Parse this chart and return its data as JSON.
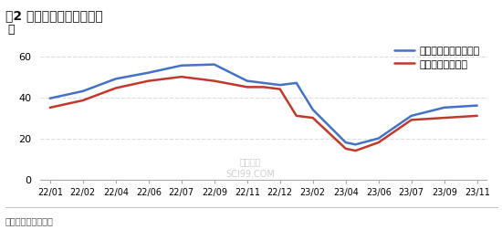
{
  "title": "图2 全国纺织企业成品库存",
  "ylabel": "天",
  "source_text": "数据来源：卓创资讯",
  "legend": [
    "纺厂纯棉坯布成品库存",
    "纺厂棉纱成品库存"
  ],
  "line1_color": "#4472C4",
  "line2_color": "#C0392B",
  "background_color": "#FFFFFF",
  "plot_bg_color": "#FFFFFF",
  "xlabels": [
    "22/01",
    "22/02",
    "22/04",
    "22/06",
    "22/07",
    "22/09",
    "22/11",
    "22/12",
    "23/02",
    "23/04",
    "23/06",
    "23/07",
    "23/09",
    "23/11"
  ],
  "ylim": [
    0,
    65
  ],
  "yticks": [
    0,
    20,
    40,
    60
  ],
  "line1_x": [
    0,
    1,
    2,
    3,
    4,
    5,
    6,
    6.5,
    7,
    7.5,
    8,
    9,
    9.3,
    10,
    11,
    12,
    13
  ],
  "line1_y": [
    39.5,
    43,
    49,
    52,
    55.5,
    56,
    48,
    47,
    46,
    47,
    34,
    18,
    17,
    20,
    31,
    35,
    36
  ],
  "line2_x": [
    0,
    1,
    2,
    3,
    4,
    5,
    6,
    6.5,
    7,
    7.5,
    8,
    9,
    9.3,
    10,
    11,
    12,
    13
  ],
  "line2_y": [
    35,
    38.5,
    44.5,
    48,
    50,
    48,
    45,
    45,
    44,
    31,
    30,
    15,
    14,
    18,
    29,
    30,
    31
  ],
  "watermark_line1": "卓创资讯",
  "watermark_line2": "SCI99.COM",
  "grid_color": "#DDDDDD",
  "spine_color": "#AAAAAA",
  "title_fontsize": 10,
  "tick_fontsize": 7,
  "legend_fontsize": 8,
  "ylabel_fontsize": 9,
  "source_fontsize": 7
}
